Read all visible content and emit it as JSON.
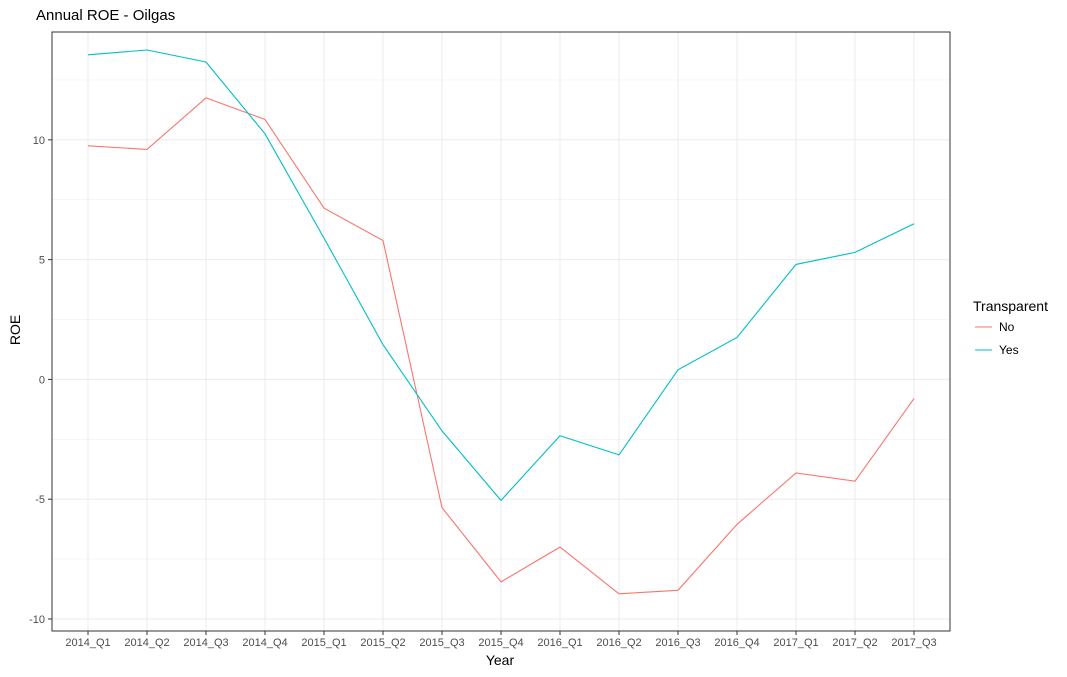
{
  "chart_data": {
    "type": "line",
    "title": "Annual ROE - Oilgas",
    "xlabel": "Year",
    "ylabel": "ROE",
    "categories": [
      "2014_Q1",
      "2014_Q2",
      "2014_Q3",
      "2014_Q4",
      "2015_Q1",
      "2015_Q2",
      "2015_Q3",
      "2015_Q4",
      "2016_Q1",
      "2016_Q2",
      "2016_Q3",
      "2016_Q4",
      "2017_Q1",
      "2017_Q2",
      "2017_Q3"
    ],
    "ylim": [
      -10,
      14
    ],
    "yticks": [
      -10,
      -5,
      0,
      5,
      10
    ],
    "ytick_labels": [
      "-10",
      "-5",
      "0",
      "5",
      "10"
    ],
    "grid": true,
    "legend": {
      "title": "Transparent",
      "position": "right"
    },
    "series": [
      {
        "name": "No",
        "color": "#F8766D",
        "values": [
          9.75,
          9.6,
          11.75,
          10.85,
          7.15,
          5.8,
          -5.35,
          -8.45,
          -7.0,
          -8.95,
          -8.8,
          -6.05,
          -3.9,
          -4.25,
          -0.8
        ]
      },
      {
        "name": "Yes",
        "color": "#00BFC4",
        "values": [
          13.55,
          13.75,
          13.25,
          10.25,
          5.9,
          1.45,
          -2.15,
          -5.05,
          -2.35,
          -3.15,
          0.4,
          1.75,
          4.8,
          5.3,
          6.5
        ]
      }
    ]
  }
}
